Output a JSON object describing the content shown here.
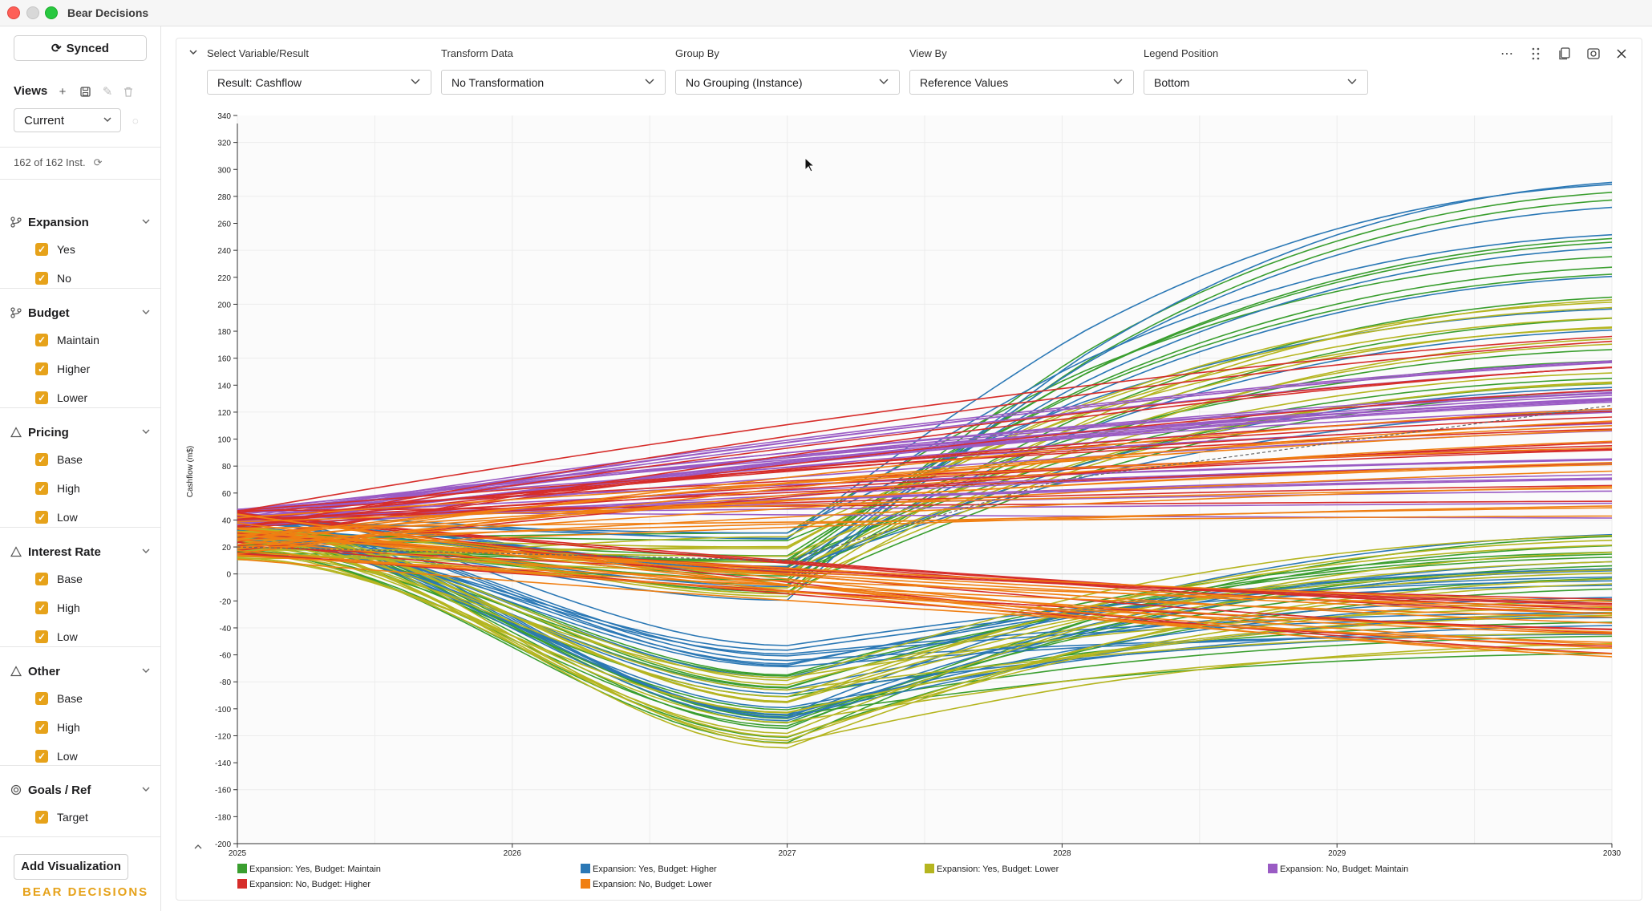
{
  "window": {
    "title": "Bear Decisions"
  },
  "sidebar": {
    "synced_label": "Synced",
    "views_label": "Views",
    "views_select": "Current",
    "instance_count": "162 of 162 Inst.",
    "groups": [
      {
        "label": "Expansion",
        "icon": "branch-icon",
        "options": [
          "Yes",
          "No"
        ]
      },
      {
        "label": "Budget",
        "icon": "branch-icon",
        "options": [
          "Maintain",
          "Higher",
          "Lower"
        ]
      },
      {
        "label": "Pricing",
        "icon": "warning-icon",
        "options": [
          "Base",
          "High",
          "Low"
        ]
      },
      {
        "label": "Interest Rate",
        "icon": "warning-icon",
        "options": [
          "Base",
          "High",
          "Low"
        ]
      },
      {
        "label": "Other",
        "icon": "warning-icon",
        "options": [
          "Base",
          "High",
          "Low"
        ]
      },
      {
        "label": "Goals / Ref",
        "icon": "target-icon",
        "options": [
          "Target"
        ]
      }
    ],
    "add_visualization": "Add Visualization",
    "brand": "BEAR DECISIONS"
  },
  "controls": {
    "variable": {
      "label": "Select Variable/Result",
      "value": "Result: Cashflow"
    },
    "transform": {
      "label": "Transform Data",
      "value": "No Transformation"
    },
    "group_by": {
      "label": "Group By",
      "value": "No Grouping (Instance)"
    },
    "view_by": {
      "label": "View By",
      "value": "Reference Values"
    },
    "legend_position": {
      "label": "Legend Position",
      "value": "Bottom"
    }
  },
  "chart_data": {
    "type": "line",
    "ylabel": "Cashflow (m$)",
    "xlabel": "",
    "x_ticks": [
      "2025",
      "2026",
      "2027",
      "2028",
      "2029",
      "2030"
    ],
    "ylim": [
      -200,
      340
    ],
    "y_ticks": [
      340,
      320,
      300,
      280,
      260,
      240,
      220,
      200,
      180,
      160,
      140,
      120,
      100,
      80,
      60,
      40,
      20,
      0,
      -20,
      -40,
      -60,
      -80,
      -100,
      -120,
      -140,
      -160,
      -180,
      -200
    ],
    "grid": true,
    "legend_position": "bottom",
    "instance_count": 162,
    "series": [
      {
        "name": "Expansion: Yes, Budget: Maintain",
        "color": "#3a9e2f",
        "start": [
          15,
          35
        ],
        "mid": [
          -20,
          -130
        ],
        "end": [
          -60,
          285
        ],
        "rise": true
      },
      {
        "name": "Expansion: Yes, Budget: Higher",
        "color": "#2b78b5",
        "start": [
          25,
          45
        ],
        "mid": [
          -15,
          -110
        ],
        "end": [
          0,
          315
        ],
        "rise": true
      },
      {
        "name": "Expansion: Yes, Budget: Lower",
        "color": "#b5b520",
        "start": [
          10,
          35
        ],
        "mid": [
          -30,
          -135
        ],
        "end": [
          -45,
          205
        ],
        "rise": true
      },
      {
        "name": "Expansion: No, Budget: Maintain",
        "color": "#9a5bc4",
        "start": [
          35,
          48
        ],
        "mid": [
          70,
          105
        ],
        "end": [
          115,
          145
        ],
        "rise": false
      },
      {
        "name": "Expansion: No, Budget: Higher",
        "color": "#d62d2a",
        "start": [
          15,
          48
        ],
        "mid": [
          -50,
          110
        ],
        "end": [
          -60,
          190
        ],
        "rise": false
      },
      {
        "name": "Expansion: No, Budget: Lower",
        "color": "#f07f12",
        "start": [
          10,
          45
        ],
        "mid": [
          -45,
          75
        ],
        "end": [
          -65,
          130
        ],
        "rise": false
      }
    ],
    "reference_line": {
      "name": "Target",
      "style": "dashed",
      "points": [
        [
          2025,
          20
        ],
        [
          2027,
          10
        ],
        [
          2028,
          70
        ],
        [
          2030,
          125
        ]
      ]
    }
  }
}
